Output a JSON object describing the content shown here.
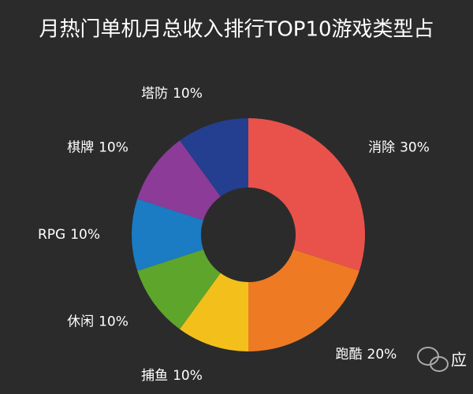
{
  "chart_data": {
    "type": "donut",
    "title": "月热门单机月总收入排行TOP10游戏类型占",
    "categories": [
      "消除",
      "跑酷",
      "捕鱼",
      "休闲",
      "RPG",
      "棋牌",
      "塔防"
    ],
    "values": [
      30,
      20,
      10,
      10,
      10,
      10,
      10
    ],
    "value_labels": [
      "30%",
      "20%",
      "10%",
      "10%",
      "10%",
      "10%",
      "10%"
    ],
    "colors": [
      "#e9524b",
      "#ef7a24",
      "#f3c01b",
      "#5ea52b",
      "#1b7bc3",
      "#8c3b98",
      "#243f8f"
    ]
  },
  "watermark": "应"
}
